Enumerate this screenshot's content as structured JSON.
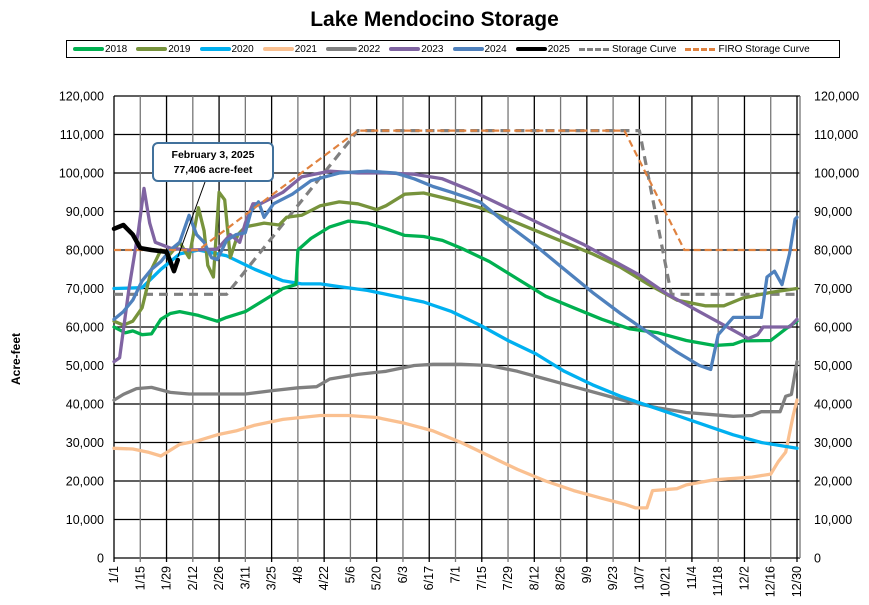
{
  "chart_data": {
    "type": "line",
    "title": "Lake Mendocino Storage",
    "xlabel": "",
    "ylabel": "Acre-feet",
    "ylim": [
      0,
      120000
    ],
    "xlim_days": [
      0,
      364
    ],
    "grid": true,
    "legend_position": "top",
    "y_ticks": [
      "0",
      "10,000",
      "20,000",
      "30,000",
      "40,000",
      "50,000",
      "60,000",
      "70,000",
      "80,000",
      "90,000",
      "100,000",
      "110,000",
      "120,000"
    ],
    "x_ticks": [
      "1/1",
      "1/15",
      "1/29",
      "2/12",
      "2/26",
      "3/11",
      "3/25",
      "4/8",
      "4/22",
      "5/6",
      "5/20",
      "6/3",
      "6/17",
      "7/1",
      "7/15",
      "7/29",
      "8/12",
      "8/26",
      "9/9",
      "9/23",
      "10/7",
      "10/21",
      "11/4",
      "11/18",
      "12/2",
      "12/16",
      "12/30"
    ],
    "annotation": {
      "line1": "February 3, 2025",
      "line2": "77,406 acre-feet",
      "day": 34,
      "value": 77406
    },
    "series": [
      {
        "name": "2018",
        "color": "#00b050",
        "style": "solid",
        "points": [
          [
            0,
            60000
          ],
          [
            6,
            58500
          ],
          [
            10,
            59000
          ],
          [
            15,
            58000
          ],
          [
            20,
            58200
          ],
          [
            25,
            62000
          ],
          [
            30,
            63500
          ],
          [
            35,
            64000
          ],
          [
            45,
            63000
          ],
          [
            55,
            61500
          ],
          [
            60,
            62500
          ],
          [
            70,
            64000
          ],
          [
            80,
            67000
          ],
          [
            90,
            70000
          ],
          [
            97,
            71000
          ],
          [
            98,
            80000
          ],
          [
            105,
            83000
          ],
          [
            115,
            86000
          ],
          [
            125,
            87500
          ],
          [
            135,
            87000
          ],
          [
            145,
            85500
          ],
          [
            155,
            83800
          ],
          [
            165,
            83500
          ],
          [
            175,
            82500
          ],
          [
            185,
            80500
          ],
          [
            200,
            77000
          ],
          [
            215,
            72500
          ],
          [
            230,
            68000
          ],
          [
            245,
            65000
          ],
          [
            260,
            62000
          ],
          [
            275,
            59500
          ],
          [
            290,
            58500
          ],
          [
            305,
            56500
          ],
          [
            320,
            55200
          ],
          [
            330,
            55500
          ],
          [
            335,
            56400
          ],
          [
            350,
            56500
          ],
          [
            358,
            59500
          ],
          [
            364,
            61500
          ]
        ]
      },
      {
        "name": "2019",
        "color": "#77933c",
        "style": "solid",
        "points": [
          [
            0,
            61500
          ],
          [
            5,
            60500
          ],
          [
            10,
            61500
          ],
          [
            15,
            65000
          ],
          [
            20,
            75000
          ],
          [
            25,
            80000
          ],
          [
            30,
            79000
          ],
          [
            35,
            82000
          ],
          [
            40,
            78000
          ],
          [
            45,
            91000
          ],
          [
            48,
            85000
          ],
          [
            50,
            76000
          ],
          [
            53,
            73000
          ],
          [
            56,
            95000
          ],
          [
            59,
            93000
          ],
          [
            62,
            78000
          ],
          [
            66,
            84000
          ],
          [
            70,
            86000
          ],
          [
            80,
            87000
          ],
          [
            88,
            86500
          ],
          [
            92,
            88500
          ],
          [
            100,
            89000
          ],
          [
            110,
            91500
          ],
          [
            120,
            92500
          ],
          [
            130,
            92000
          ],
          [
            140,
            90500
          ],
          [
            145,
            91500
          ],
          [
            155,
            94500
          ],
          [
            165,
            94800
          ],
          [
            180,
            93000
          ],
          [
            195,
            91000
          ],
          [
            210,
            88000
          ],
          [
            225,
            85000
          ],
          [
            240,
            82000
          ],
          [
            255,
            79000
          ],
          [
            270,
            75500
          ],
          [
            285,
            71000
          ],
          [
            300,
            67000
          ],
          [
            315,
            65500
          ],
          [
            325,
            65500
          ],
          [
            335,
            67500
          ],
          [
            350,
            69000
          ],
          [
            364,
            70000
          ]
        ]
      },
      {
        "name": "2020",
        "color": "#00b0f0",
        "style": "solid",
        "points": [
          [
            0,
            70000
          ],
          [
            15,
            70200
          ],
          [
            25,
            75000
          ],
          [
            35,
            79000
          ],
          [
            45,
            80000
          ],
          [
            60,
            78500
          ],
          [
            75,
            75000
          ],
          [
            90,
            72000
          ],
          [
            100,
            71200
          ],
          [
            110,
            71200
          ],
          [
            120,
            70500
          ],
          [
            135,
            69500
          ],
          [
            150,
            68000
          ],
          [
            165,
            66500
          ],
          [
            180,
            64000
          ],
          [
            195,
            60500
          ],
          [
            210,
            56500
          ],
          [
            225,
            53000
          ],
          [
            240,
            48500
          ],
          [
            255,
            45000
          ],
          [
            270,
            42000
          ],
          [
            285,
            39500
          ],
          [
            300,
            37000
          ],
          [
            315,
            34500
          ],
          [
            330,
            32000
          ],
          [
            345,
            30000
          ],
          [
            364,
            28500
          ]
        ]
      },
      {
        "name": "2021",
        "color": "#fac090",
        "style": "solid",
        "points": [
          [
            0,
            28500
          ],
          [
            10,
            28300
          ],
          [
            18,
            27500
          ],
          [
            25,
            26500
          ],
          [
            30,
            28000
          ],
          [
            35,
            29500
          ],
          [
            45,
            30500
          ],
          [
            55,
            32000
          ],
          [
            65,
            33000
          ],
          [
            75,
            34500
          ],
          [
            90,
            36000
          ],
          [
            110,
            37000
          ],
          [
            125,
            37000
          ],
          [
            140,
            36500
          ],
          [
            155,
            35000
          ],
          [
            170,
            33000
          ],
          [
            185,
            30000
          ],
          [
            200,
            26500
          ],
          [
            215,
            23000
          ],
          [
            230,
            20000
          ],
          [
            245,
            17500
          ],
          [
            260,
            15500
          ],
          [
            272,
            14000
          ],
          [
            278,
            13000
          ],
          [
            284,
            13000
          ],
          [
            287,
            17500
          ],
          [
            300,
            18000
          ],
          [
            305,
            19000
          ],
          [
            320,
            20300
          ],
          [
            340,
            21000
          ],
          [
            350,
            21800
          ],
          [
            354,
            25000
          ],
          [
            358,
            27500
          ],
          [
            362,
            37000
          ],
          [
            364,
            41000
          ]
        ]
      },
      {
        "name": "2022",
        "color": "#808080",
        "style": "solid",
        "points": [
          [
            0,
            41000
          ],
          [
            5,
            42500
          ],
          [
            12,
            44000
          ],
          [
            20,
            44300
          ],
          [
            30,
            43000
          ],
          [
            40,
            42600
          ],
          [
            55,
            42600
          ],
          [
            70,
            42600
          ],
          [
            85,
            43500
          ],
          [
            98,
            44200
          ],
          [
            108,
            44500
          ],
          [
            115,
            46500
          ],
          [
            130,
            47700
          ],
          [
            145,
            48500
          ],
          [
            160,
            50000
          ],
          [
            170,
            50300
          ],
          [
            185,
            50300
          ],
          [
            200,
            50000
          ],
          [
            215,
            48500
          ],
          [
            230,
            46500
          ],
          [
            245,
            44500
          ],
          [
            260,
            42500
          ],
          [
            275,
            40500
          ],
          [
            290,
            39000
          ],
          [
            305,
            37800
          ],
          [
            320,
            37200
          ],
          [
            330,
            36800
          ],
          [
            340,
            37000
          ],
          [
            345,
            38000
          ],
          [
            355,
            38000
          ],
          [
            358,
            42000
          ],
          [
            361,
            42500
          ],
          [
            364,
            51000
          ]
        ]
      },
      {
        "name": "2023",
        "color": "#8064a2",
        "style": "solid",
        "points": [
          [
            0,
            51000
          ],
          [
            3,
            52000
          ],
          [
            8,
            70000
          ],
          [
            13,
            85000
          ],
          [
            16,
            96000
          ],
          [
            19,
            87000
          ],
          [
            22,
            82000
          ],
          [
            30,
            80500
          ],
          [
            40,
            80000
          ],
          [
            55,
            80200
          ],
          [
            62,
            84000
          ],
          [
            67,
            82000
          ],
          [
            70,
            87000
          ],
          [
            74,
            92000
          ],
          [
            78,
            92000
          ],
          [
            90,
            95000
          ],
          [
            100,
            99000
          ],
          [
            115,
            100500
          ],
          [
            130,
            100000
          ],
          [
            145,
            100000
          ],
          [
            160,
            99700
          ],
          [
            175,
            98500
          ],
          [
            190,
            95500
          ],
          [
            205,
            92000
          ],
          [
            220,
            88500
          ],
          [
            235,
            85000
          ],
          [
            250,
            81500
          ],
          [
            265,
            77500
          ],
          [
            280,
            73500
          ],
          [
            295,
            68500
          ],
          [
            310,
            64500
          ],
          [
            325,
            60500
          ],
          [
            338,
            57000
          ],
          [
            343,
            58000
          ],
          [
            346,
            60000
          ],
          [
            355,
            60000
          ],
          [
            360,
            60000
          ],
          [
            364,
            62000
          ]
        ]
      },
      {
        "name": "2024",
        "color": "#4f81bd",
        "style": "solid",
        "points": [
          [
            0,
            62000
          ],
          [
            5,
            64000
          ],
          [
            10,
            67000
          ],
          [
            15,
            72000
          ],
          [
            20,
            75000
          ],
          [
            25,
            77000
          ],
          [
            30,
            80000
          ],
          [
            35,
            82000
          ],
          [
            40,
            89000
          ],
          [
            44,
            84000
          ],
          [
            48,
            82000
          ],
          [
            52,
            78000
          ],
          [
            55,
            77500
          ],
          [
            60,
            82500
          ],
          [
            65,
            84000
          ],
          [
            70,
            84500
          ],
          [
            73,
            90000
          ],
          [
            77,
            92500
          ],
          [
            80,
            88500
          ],
          [
            85,
            92000
          ],
          [
            95,
            94500
          ],
          [
            105,
            98000
          ],
          [
            120,
            100000
          ],
          [
            135,
            100500
          ],
          [
            150,
            100000
          ],
          [
            160,
            98500
          ],
          [
            170,
            96500
          ],
          [
            180,
            95000
          ],
          [
            195,
            92500
          ],
          [
            210,
            86500
          ],
          [
            225,
            81000
          ],
          [
            240,
            75000
          ],
          [
            255,
            69000
          ],
          [
            270,
            63500
          ],
          [
            285,
            58500
          ],
          [
            300,
            53500
          ],
          [
            312,
            50000
          ],
          [
            318,
            49000
          ],
          [
            322,
            58000
          ],
          [
            330,
            62500
          ],
          [
            340,
            62500
          ],
          [
            345,
            62500
          ],
          [
            348,
            73000
          ],
          [
            352,
            74500
          ],
          [
            356,
            71000
          ],
          [
            360,
            79000
          ],
          [
            363,
            88000
          ],
          [
            364,
            88500
          ]
        ]
      },
      {
        "name": "2025",
        "color": "#000000",
        "style": "solid",
        "points": [
          [
            0,
            85500
          ],
          [
            5,
            86500
          ],
          [
            10,
            84000
          ],
          [
            14,
            80500
          ],
          [
            20,
            80000
          ],
          [
            28,
            79500
          ],
          [
            30,
            77000
          ],
          [
            32,
            74500
          ],
          [
            34,
            77406
          ]
        ]
      },
      {
        "name": "Storage Curve",
        "color": "#808080",
        "style": "dashed",
        "points": [
          [
            0,
            68500
          ],
          [
            60,
            68500
          ],
          [
            130,
            111000
          ],
          [
            280,
            111000
          ],
          [
            297,
            68500
          ],
          [
            364,
            68500
          ]
        ]
      },
      {
        "name": "FIRO Storage Curve",
        "color": "#e0823f",
        "style": "dashed",
        "points": [
          [
            0,
            80000
          ],
          [
            45,
            80000
          ],
          [
            130,
            111000
          ],
          [
            272,
            111000
          ],
          [
            304,
            80000
          ],
          [
            364,
            80000
          ]
        ]
      }
    ]
  }
}
